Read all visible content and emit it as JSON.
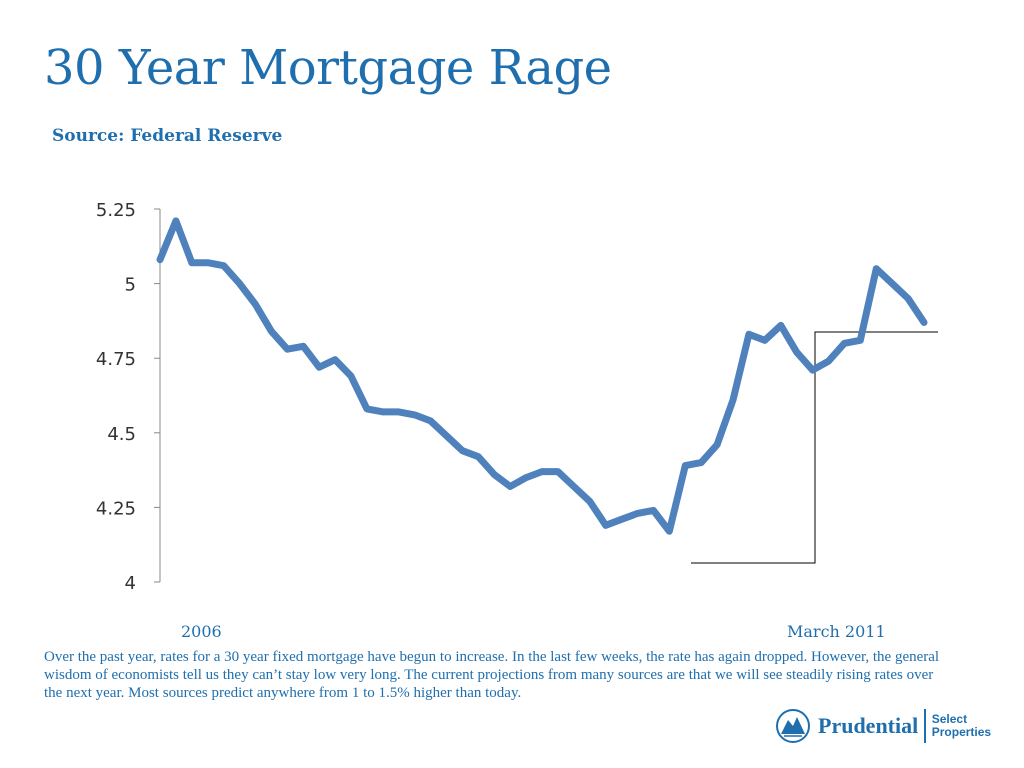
{
  "slide": {
    "title": "30 Year Mortgage Rage",
    "subtitle": "Source: Federal Reserve",
    "x_label_start": "2006",
    "x_label_end": "March 2011",
    "body": "Over the past year, rates for a 30 year fixed mortgage have begun to increase. In the last few weeks, the rate has again dropped. However, the general wisdom of economists tell us they can’t stay low very long. The current projections from many sources are that we will see steadily rising rates over the next year.  Most sources predict anywhere from 1 to 1.5% higher than today."
  },
  "logo": {
    "name": "Prudential",
    "sub_line1": "Select",
    "sub_line2": "Properties"
  },
  "chart_data": {
    "type": "line",
    "title": "",
    "xlabel": "",
    "ylabel": "",
    "ylim": [
      4,
      5.25
    ],
    "yticks": [
      4,
      4.25,
      4.5,
      4.75,
      5,
      5.25
    ],
    "ytick_labels": [
      "4",
      "4.25",
      "4.5",
      "4.75",
      "5",
      "5.25"
    ],
    "grid": false,
    "legend": "none",
    "line_color": "#4f81bd",
    "series": [
      {
        "values": [
          5.08,
          5.21,
          5.07,
          5.07,
          5.06,
          5.0,
          4.93,
          4.84,
          4.78,
          4.79,
          4.72,
          4.745,
          4.69,
          4.58,
          4.57,
          4.57,
          4.56,
          4.54,
          4.49,
          4.44,
          4.42,
          4.36,
          4.32,
          4.35,
          4.37,
          4.37,
          4.32,
          4.27,
          4.19,
          4.21,
          4.23,
          4.24,
          4.17,
          4.39,
          4.4,
          4.46,
          4.61,
          4.83,
          4.81,
          4.86,
          4.77,
          4.71,
          4.74,
          4.8,
          4.81,
          5.05,
          5.0,
          4.95,
          4.87
        ]
      }
    ]
  }
}
